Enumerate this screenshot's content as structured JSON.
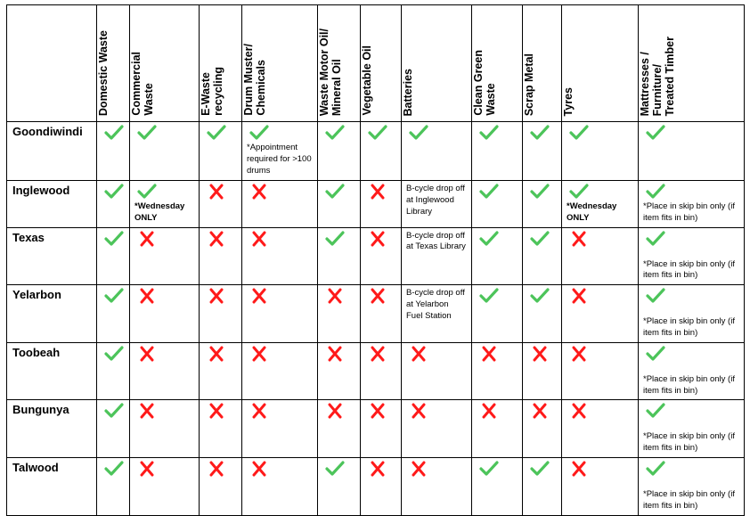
{
  "colors": {
    "yes": "#4cc45a",
    "no": "#ff1a1a"
  },
  "columns": [
    "Domestic Waste",
    "Commercial\nWaste",
    "E-Waste\nrecycling",
    "Drum Muster/\nChemicals",
    "Waste Motor Oil/\nMineral Oil",
    "Vegetable Oil",
    "Batteries",
    "Clean Green\nWaste",
    "Scrap Metal",
    "Tyres",
    "Mattresses /\nFurniture/\nTreated Timber"
  ],
  "rows": [
    {
      "town": "Goondiwindi",
      "cells": [
        {
          "s": "yes"
        },
        {
          "s": "yes"
        },
        {
          "s": "yes"
        },
        {
          "s": "yes",
          "note": "*Appointment required for >100 drums"
        },
        {
          "s": "yes"
        },
        {
          "s": "yes"
        },
        {
          "s": "yes"
        },
        {
          "s": "yes"
        },
        {
          "s": "yes"
        },
        {
          "s": "yes"
        },
        {
          "s": "yes"
        }
      ]
    },
    {
      "town": "Inglewood",
      "cells": [
        {
          "s": "yes"
        },
        {
          "s": "yes",
          "note": "*Wednesday ONLY",
          "bold": true
        },
        {
          "s": "no"
        },
        {
          "s": "no"
        },
        {
          "s": "yes"
        },
        {
          "s": "no"
        },
        {
          "text": "B-cycle drop off at Inglewood Library"
        },
        {
          "s": "yes"
        },
        {
          "s": "yes"
        },
        {
          "s": "yes",
          "note": "*Wednesday ONLY",
          "bold": true
        },
        {
          "s": "yes",
          "note": "*Place in skip bin only (if item fits in bin)"
        }
      ]
    },
    {
      "town": "Texas",
      "cells": [
        {
          "s": "yes"
        },
        {
          "s": "no"
        },
        {
          "s": "no"
        },
        {
          "s": "no"
        },
        {
          "s": "yes"
        },
        {
          "s": "no"
        },
        {
          "text": "B-cycle drop off at Texas Library"
        },
        {
          "s": "yes"
        },
        {
          "s": "yes"
        },
        {
          "s": "no"
        },
        {
          "s": "yes",
          "note": "*Place in skip bin only (if item fits in bin)",
          "spaced": true
        }
      ]
    },
    {
      "town": "Yelarbon",
      "cells": [
        {
          "s": "yes"
        },
        {
          "s": "no"
        },
        {
          "s": "no"
        },
        {
          "s": "no"
        },
        {
          "s": "no"
        },
        {
          "s": "no"
        },
        {
          "text": "B-cycle drop off at Yelarbon Fuel Station"
        },
        {
          "s": "yes"
        },
        {
          "s": "yes"
        },
        {
          "s": "no"
        },
        {
          "s": "yes",
          "note": "*Place in skip bin only (if item fits in bin)",
          "spaced": true
        }
      ]
    },
    {
      "town": "Toobeah",
      "cells": [
        {
          "s": "yes"
        },
        {
          "s": "no"
        },
        {
          "s": "no"
        },
        {
          "s": "no"
        },
        {
          "s": "no"
        },
        {
          "s": "no"
        },
        {
          "s": "no"
        },
        {
          "s": "no"
        },
        {
          "s": "no"
        },
        {
          "s": "no"
        },
        {
          "s": "yes",
          "note": "*Place in skip bin only (if item fits in bin)",
          "spaced": true
        }
      ]
    },
    {
      "town": "Bungunya",
      "cells": [
        {
          "s": "yes"
        },
        {
          "s": "no"
        },
        {
          "s": "no"
        },
        {
          "s": "no"
        },
        {
          "s": "no"
        },
        {
          "s": "no"
        },
        {
          "s": "no"
        },
        {
          "s": "no"
        },
        {
          "s": "no"
        },
        {
          "s": "no"
        },
        {
          "s": "yes",
          "note": "*Place in skip bin only (if item fits in bin)",
          "spaced": true
        }
      ]
    },
    {
      "town": "Talwood",
      "cells": [
        {
          "s": "yes"
        },
        {
          "s": "no"
        },
        {
          "s": "no"
        },
        {
          "s": "no"
        },
        {
          "s": "yes"
        },
        {
          "s": "no"
        },
        {
          "s": "no"
        },
        {
          "s": "yes"
        },
        {
          "s": "yes"
        },
        {
          "s": "no"
        },
        {
          "s": "yes",
          "note": "*Place in skip bin only (if item fits in bin)",
          "spaced": true
        }
      ]
    }
  ]
}
